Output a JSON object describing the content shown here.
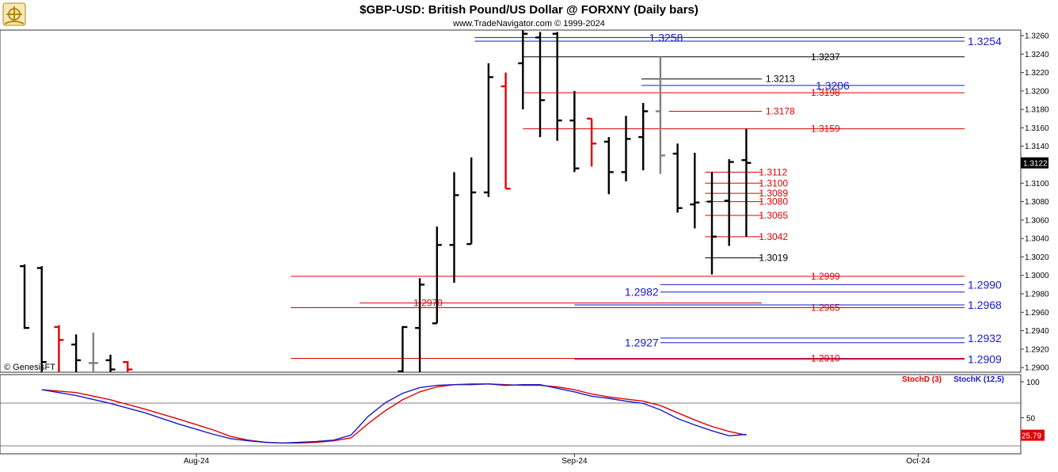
{
  "title": "$GBP-USD:  British Pound/US Dollar @ FORXNY  (Daily bars)",
  "subtitle": "www.TradeNavigator.com © 1999-2024",
  "watermark": "© GenesisFT",
  "logo_icon": "ship-steering-wheel-icon",
  "colors": {
    "up_bar": "#000000",
    "down_bar": "#e00000",
    "neutral_bar": "#808080",
    "stoch_d": "#e00000",
    "stoch_k": "#1a1acc",
    "blue_level": "#1a1acc",
    "red_level": "#e00000",
    "black_level": "#000000"
  },
  "chart_data": [
    {
      "type": "ohlc",
      "title": "$GBP-USD:  British Pound/US Dollar @ FORXNY  (Daily bars)",
      "y_axis_side": "right",
      "ylim": [
        1.2895,
        1.3266
      ],
      "y_ticks": [
        "1.3260",
        "1.3240",
        "1.3220",
        "1.3200",
        "1.3180",
        "1.3160",
        "1.3140",
        "1.3120",
        "1.3100",
        "1.3080",
        "1.3060",
        "1.3040",
        "1.3020",
        "1.3000",
        "1.2980",
        "1.2960",
        "1.2940",
        "1.2920",
        "1.2900"
      ],
      "x_labels": [
        {
          "label": "Aug-24",
          "bar_index": 10
        },
        {
          "label": "Sep-24",
          "bar_index": 32
        },
        {
          "label": "Oct-24",
          "bar_index": 52
        }
      ],
      "last_price": "1.3122",
      "bars": [
        {
          "i": 0,
          "o": 1.301,
          "h": 1.3012,
          "l": 1.2942,
          "c": 1.2943,
          "color": "up"
        },
        {
          "i": 1,
          "o": 1.3008,
          "h": 1.301,
          "l": 1.2895,
          "c": 1.2906,
          "color": "up"
        },
        {
          "i": 2,
          "o": 1.2944,
          "h": 1.2946,
          "l": 1.2895,
          "c": 1.293,
          "color": "down"
        },
        {
          "i": 3,
          "o": 1.2925,
          "h": 1.2936,
          "l": 1.2895,
          "c": 1.2908,
          "color": "up"
        },
        {
          "i": 4,
          "o": 1.2905,
          "h": 1.2938,
          "l": 1.2895,
          "c": 1.2905,
          "color": "neutral"
        },
        {
          "i": 5,
          "o": 1.2908,
          "h": 1.2914,
          "l": 1.2895,
          "c": 1.2898,
          "color": "up"
        },
        {
          "i": 6,
          "o": 1.2906,
          "h": 1.2907,
          "l": 1.2895,
          "c": 1.2898,
          "color": "down"
        },
        {
          "i": 22,
          "o": 1.2896,
          "h": 1.2945,
          "l": 1.2895,
          "c": 1.2944,
          "color": "up"
        },
        {
          "i": 23,
          "o": 1.2943,
          "h": 1.2997,
          "l": 1.2895,
          "c": 1.299,
          "color": "up"
        },
        {
          "i": 24,
          "o": 1.2948,
          "h": 1.3053,
          "l": 1.2948,
          "c": 1.3033,
          "color": "up"
        },
        {
          "i": 25,
          "o": 1.3033,
          "h": 1.3112,
          "l": 1.2992,
          "c": 1.3087,
          "color": "up"
        },
        {
          "i": 26,
          "o": 1.3034,
          "h": 1.3128,
          "l": 1.3034,
          "c": 1.309,
          "color": "up"
        },
        {
          "i": 27,
          "o": 1.309,
          "h": 1.323,
          "l": 1.3085,
          "c": 1.3215,
          "color": "up"
        },
        {
          "i": 28,
          "o": 1.3205,
          "h": 1.322,
          "l": 1.3094,
          "c": 1.3094,
          "color": "down"
        },
        {
          "i": 29,
          "o": 1.323,
          "h": 1.3266,
          "l": 1.318,
          "c": 1.3262,
          "color": "up"
        },
        {
          "i": 30,
          "o": 1.3258,
          "h": 1.3264,
          "l": 1.315,
          "c": 1.319,
          "color": "up"
        },
        {
          "i": 31,
          "o": 1.3262,
          "h": 1.3264,
          "l": 1.3146,
          "c": 1.3168,
          "color": "up"
        },
        {
          "i": 32,
          "o": 1.3168,
          "h": 1.32,
          "l": 1.3112,
          "c": 1.3116,
          "color": "up"
        },
        {
          "i": 33,
          "o": 1.317,
          "h": 1.317,
          "l": 1.3118,
          "c": 1.3143,
          "color": "down"
        },
        {
          "i": 34,
          "o": 1.3145,
          "h": 1.315,
          "l": 1.3088,
          "c": 1.3112,
          "color": "up"
        },
        {
          "i": 35,
          "o": 1.3112,
          "h": 1.3173,
          "l": 1.3102,
          "c": 1.3148,
          "color": "up"
        },
        {
          "i": 36,
          "o": 1.315,
          "h": 1.3187,
          "l": 1.3114,
          "c": 1.3178,
          "color": "up"
        },
        {
          "i": 37,
          "o": 1.3178,
          "h": 1.3237,
          "l": 1.311,
          "c": 1.313,
          "color": "neutral"
        },
        {
          "i": 38,
          "o": 1.3132,
          "h": 1.3143,
          "l": 1.3068,
          "c": 1.3073,
          "color": "up"
        },
        {
          "i": 39,
          "o": 1.3077,
          "h": 1.3133,
          "l": 1.3051,
          "c": 1.3079,
          "color": "up"
        },
        {
          "i": 40,
          "o": 1.308,
          "h": 1.3112,
          "l": 1.3001,
          "c": 1.3042,
          "color": "up"
        },
        {
          "i": 41,
          "o": 1.3081,
          "h": 1.3126,
          "l": 1.3032,
          "c": 1.3123,
          "color": "up"
        },
        {
          "i": 42,
          "o": 1.3125,
          "h": 1.3159,
          "l": 1.3042,
          "c": 1.3122,
          "color": "up"
        }
      ],
      "levels": [
        {
          "value": "1.3258",
          "price": 1.3258,
          "color": "blue",
          "x_start_bar": 26.2,
          "label_side": "left",
          "size": "big"
        },
        {
          "value": "1.3254",
          "price": 1.3254,
          "color": "blue",
          "x_start_bar": 26.2,
          "label_side": "right",
          "size": "big"
        },
        {
          "value": "1.3237",
          "price": 1.3237,
          "color": "black",
          "x_start_bar": 29.0,
          "label_side": "right",
          "size": "small"
        },
        {
          "value": "1.3213",
          "price": 1.3213,
          "color": "black",
          "x_start_bar": 35.9,
          "label_side": "mid",
          "size": "small",
          "x_end_bar": 42.9
        },
        {
          "value": "1.3206",
          "price": 1.3206,
          "color": "blue",
          "x_start_bar": 35.9,
          "label_side": "left",
          "size": "big"
        },
        {
          "value": "1.3198",
          "price": 1.3198,
          "color": "red",
          "x_start_bar": 29.0,
          "label_side": "right",
          "size": "small"
        },
        {
          "value": "1.3178",
          "price": 1.3178,
          "color": "red",
          "x_start_bar": 37.5,
          "label_side": "mid",
          "size": "small",
          "x_end_bar": 42.9
        },
        {
          "value": "1.3159",
          "price": 1.3159,
          "color": "red",
          "x_start_bar": 29.0,
          "label_side": "right",
          "size": "small"
        },
        {
          "value": "1.3112",
          "price": 1.3112,
          "color": "red",
          "x_start_bar": 39.6,
          "label_side": "mid",
          "size": "small",
          "x_end_bar": 42.9
        },
        {
          "value": "1.3100",
          "price": 1.31,
          "color": "red",
          "x_start_bar": 39.6,
          "label_side": "mid",
          "size": "small",
          "x_end_bar": 42.9
        },
        {
          "value": "1.3089",
          "price": 1.3089,
          "color": "red",
          "x_start_bar": 39.6,
          "label_side": "mid",
          "size": "small",
          "x_end_bar": 42.9
        },
        {
          "value": "1.3080",
          "price": 1.308,
          "color": "red",
          "x_start_bar": 39.6,
          "label_side": "mid",
          "size": "small",
          "x_end_bar": 42.9
        },
        {
          "value": "1.3065",
          "price": 1.3065,
          "color": "red",
          "x_start_bar": 39.6,
          "label_side": "mid",
          "size": "small",
          "x_end_bar": 42.9
        },
        {
          "value": "1.3042",
          "price": 1.3042,
          "color": "red",
          "x_start_bar": 39.6,
          "label_side": "mid",
          "size": "small",
          "x_end_bar": 42.9
        },
        {
          "value": "1.3019",
          "price": 1.3019,
          "color": "black",
          "x_start_bar": 39.6,
          "label_side": "mid",
          "size": "small",
          "x_end_bar": 42.9
        },
        {
          "value": "1.2999",
          "price": 1.2999,
          "color": "red",
          "x_start_bar": 15.5,
          "label_side": "right",
          "size": "small"
        },
        {
          "value": "1.2990",
          "price": 1.299,
          "color": "blue",
          "x_start_bar": 37.0,
          "label_side": "right",
          "size": "big"
        },
        {
          "value": "1.2982",
          "price": 1.2982,
          "color": "blue",
          "x_start_bar": 37.0,
          "label_side": "left",
          "size": "big"
        },
        {
          "value": "1.2970",
          "price": 1.297,
          "color": "red",
          "x_start_bar": 19.5,
          "label_side": "mid",
          "size": "small",
          "x_end_bar": 42.9
        },
        {
          "value": "1.2965",
          "price": 1.2965,
          "color": "red",
          "x_start_bar": 15.5,
          "label_side": "right",
          "size": "small"
        },
        {
          "value": "1.2968",
          "price": 1.2968,
          "color": "blue",
          "x_start_bar": 32.0,
          "label_side": "right",
          "size": "big"
        },
        {
          "value": "1.2932",
          "price": 1.2932,
          "color": "blue",
          "x_start_bar": 37.0,
          "label_side": "right",
          "size": "big"
        },
        {
          "value": "1.2927",
          "price": 1.2927,
          "color": "blue",
          "x_start_bar": 37.0,
          "label_side": "left",
          "size": "big"
        },
        {
          "value": "1.2910",
          "price": 1.291,
          "color": "red",
          "x_start_bar": 15.5,
          "label_side": "right",
          "size": "small"
        },
        {
          "value": "1.2909",
          "price": 1.2909,
          "color": "blue",
          "x_start_bar": 32.0,
          "label_side": "right",
          "size": "big"
        }
      ]
    },
    {
      "type": "line",
      "legend": [
        {
          "name": "StochD (3)",
          "color": "red"
        },
        {
          "name": "StochK (12,5)",
          "color": "blue"
        }
      ],
      "ylim": [
        0,
        110
      ],
      "y_ticks": [
        "100",
        "50"
      ],
      "last_value": "25.79",
      "series": [
        {
          "name": "StochD (3)",
          "x": [
            1,
            3,
            5,
            7,
            9,
            11,
            12,
            13,
            14,
            15,
            16,
            17,
            18,
            19,
            20,
            21,
            22,
            23,
            24,
            25,
            26,
            27,
            28,
            29,
            30,
            31,
            32,
            33,
            34,
            35,
            36,
            37,
            38,
            39,
            40,
            41,
            42
          ],
          "values": [
            89,
            85,
            75,
            62,
            48,
            33,
            24,
            19,
            16,
            15,
            15,
            16,
            18,
            22,
            42,
            60,
            75,
            86,
            93,
            96,
            97,
            97,
            96,
            95,
            95,
            93,
            89,
            83,
            79,
            76,
            73,
            67,
            57,
            47,
            38,
            31,
            26
          ]
        },
        {
          "name": "StochK (12,5)",
          "x": [
            1,
            3,
            5,
            7,
            9,
            11,
            12,
            13,
            14,
            15,
            16,
            17,
            18,
            19,
            20,
            21,
            22,
            23,
            24,
            25,
            26,
            27,
            28,
            29,
            30,
            31,
            32,
            33,
            34,
            35,
            36,
            37,
            38,
            39,
            40,
            41,
            42
          ],
          "values": [
            89,
            81,
            70,
            57,
            41,
            27,
            21,
            18,
            16,
            15,
            16,
            17,
            19,
            26,
            52,
            71,
            84,
            92,
            95,
            96,
            96,
            97,
            95,
            96,
            96,
            91,
            86,
            80,
            77,
            73,
            70,
            61,
            49,
            40,
            32,
            25,
            27
          ]
        }
      ]
    }
  ]
}
